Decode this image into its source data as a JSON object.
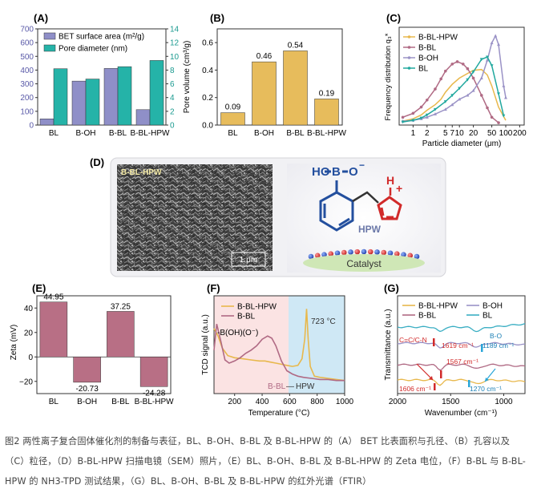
{
  "panels": {
    "A": {
      "label": "(A)",
      "legend": [
        "BET surface area (m²/g)",
        "Pore diameter (nm)"
      ],
      "colors": {
        "bet": "#8f8fc8",
        "pore": "#25b3a8"
      },
      "left_ticks": [
        "0",
        "100",
        "200",
        "300",
        "400",
        "500",
        "600",
        "700"
      ],
      "right_ticks": [
        "0",
        "2",
        "4",
        "6",
        "8",
        "10",
        "12",
        "14"
      ],
      "categories": [
        "BL",
        "B-OH",
        "B-BL",
        "B-BL-HPW"
      ]
    },
    "B": {
      "label": "(B)",
      "ylabel": "Pore volume (cm³/g)",
      "ticks": [
        "0.0",
        "0.2",
        "0.4",
        "0.6"
      ],
      "color": "#e7bc5c"
    },
    "C": {
      "label": "(C)",
      "ylabel": "Frequency distribution q₃*",
      "xlabel": "Particle diameter (μm)",
      "xticks": [
        "1",
        "2",
        "5",
        "7",
        "10",
        "20",
        "50",
        "100",
        "200"
      ],
      "legend": [
        "B-BL-HPW",
        "B-BL",
        "B-OH",
        "BL"
      ]
    },
    "D": {
      "label": "(D)",
      "sem_tag": "B-BL-HPW",
      "scale_bar": "1 μm",
      "scheme_hpw": "HPW",
      "scheme_catalyst": "Catalyst",
      "atoms": {
        "HO": "HO",
        "B": "B",
        "O": "O",
        "minus": "−",
        "H": "H",
        "N": "N",
        "plus": "+"
      }
    },
    "E": {
      "label": "(E)",
      "ylabel": "Zeta (mV)",
      "ticks": [
        "−20",
        "0",
        "20",
        "40"
      ],
      "color": "#b86f85"
    },
    "F": {
      "label": "(F)",
      "ylabel": "TCD signal (a.u.)",
      "xlabel": "Temperature (°C)",
      "xticks": [
        "200",
        "400",
        "600",
        "800",
        "1000"
      ],
      "legend": [
        "B-BL-HPW",
        "B-BL"
      ],
      "annot_boh": "-B(OH)(O⁻)",
      "annot_peak": "723 °C",
      "annot_bbl": "B-BL",
      "annot_dash": "—",
      "annot_hpw": "HPW"
    },
    "G": {
      "label": "(G)",
      "ylabel": "Transmittance (a.u.)",
      "xlabel": "Wavenumber (cm⁻¹)",
      "xticks": [
        "2000",
        "1500",
        "1000"
      ],
      "legend": [
        "B-BL-HPW",
        "B-OH",
        "B-BL",
        "BL"
      ],
      "annot": [
        "C=C/C-N",
        "1619 cm⁻¹",
        "B-O",
        "1189 cm⁻¹",
        "1567 cm⁻¹",
        "1606 cm⁻¹",
        "1270 cm⁻¹"
      ]
    }
  },
  "chart_data": [
    {
      "panel": "A",
      "type": "bar",
      "categories": [
        "BL",
        "B-OH",
        "B-BL",
        "B-BL-HPW"
      ],
      "series": [
        {
          "name": "BET surface area (m²/g)",
          "values": [
            45,
            320,
            412,
            112
          ],
          "axis": "left"
        },
        {
          "name": "Pore diameter (nm)",
          "values": [
            8.2,
            6.7,
            8.5,
            9.4
          ],
          "axis": "right"
        }
      ],
      "ylim": [
        0,
        700
      ],
      "y2lim": [
        0,
        14
      ]
    },
    {
      "panel": "B",
      "type": "bar",
      "categories": [
        "BL",
        "B-OH",
        "B-BL",
        "B-BL-HPW"
      ],
      "values": [
        0.09,
        0.46,
        0.54,
        0.19
      ],
      "data_labels": [
        "0.09",
        "0.46",
        "0.54",
        "0.19"
      ],
      "ylabel": "Pore volume (cm³/g)",
      "ylim": [
        0,
        0.7
      ]
    },
    {
      "panel": "C",
      "type": "line",
      "xscale": "log",
      "xlabel": "Particle diameter (μm)",
      "ylabel": "Frequency distribution q₃*",
      "xlim": [
        0.5,
        250
      ],
      "series": [
        {
          "name": "B-BL-HPW",
          "color": "#e8b84c",
          "x": [
            0.6,
            1,
            1.5,
            2,
            3,
            4,
            5,
            7,
            10,
            15,
            20,
            30,
            40,
            50,
            70,
            100
          ],
          "y": [
            0.5,
            0.8,
            1.3,
            1.9,
            2.6,
            3.3,
            4.2,
            5.2,
            6.0,
            6.6,
            7.0,
            7.1,
            6.4,
            5.0,
            2.3,
            0.6
          ]
        },
        {
          "name": "B-BL",
          "color": "#b06a84",
          "x": [
            0.6,
            1,
            1.5,
            2,
            3,
            4,
            5,
            7,
            9,
            12,
            15,
            20,
            30,
            40,
            50,
            70
          ],
          "y": [
            1.0,
            1.5,
            2.3,
            3.2,
            4.6,
            5.9,
            6.9,
            7.8,
            8.1,
            7.8,
            7.2,
            6.0,
            3.8,
            2.2,
            1.0,
            0.3
          ]
        },
        {
          "name": "B-OH",
          "color": "#9a92c6",
          "x": [
            0.6,
            1,
            1.5,
            2,
            3,
            5,
            7,
            10,
            15,
            20,
            30,
            40,
            50,
            60,
            70,
            90,
            100
          ],
          "y": [
            0.5,
            0.6,
            0.8,
            1.0,
            1.4,
            2.0,
            2.6,
            3.3,
            3.8,
            4.4,
            6.0,
            8.3,
            10.5,
            11.4,
            10.3,
            5.0,
            3.5
          ]
        },
        {
          "name": "BL",
          "color": "#20a89e",
          "x": [
            0.6,
            1,
            1.5,
            2,
            3,
            5,
            7,
            10,
            15,
            20,
            30,
            40,
            50,
            70,
            90
          ],
          "y": [
            0.4,
            0.6,
            0.9,
            1.3,
            2.0,
            3.0,
            3.8,
            4.7,
            5.8,
            6.8,
            8.4,
            8.7,
            7.6,
            4.0,
            1.2
          ]
        }
      ]
    },
    {
      "panel": "E",
      "type": "bar",
      "categories": [
        "BL",
        "B-OH",
        "B-BL",
        "B-BL-HPW"
      ],
      "values": [
        44.95,
        -20.73,
        37.25,
        -24.28
      ],
      "data_labels": [
        "44.95",
        "-20.73",
        "37.25",
        "-24.28"
      ],
      "ylabel": "Zeta (mV)",
      "ylim": [
        -30,
        50
      ]
    },
    {
      "panel": "F",
      "type": "line",
      "xlabel": "Temperature (°C)",
      "ylabel": "TCD signal (a.u.)",
      "xlim": [
        50,
        1000
      ],
      "series": [
        {
          "name": "B-BL-HPW",
          "color": "#e8b84c",
          "x": [
            50,
            80,
            110,
            150,
            200,
            260,
            320,
            380,
            420,
            460,
            500,
            540,
            580,
            620,
            660,
            690,
            710,
            723,
            735,
            750,
            780,
            820,
            880,
            940,
            1000
          ],
          "y": [
            8,
            7.3,
            6.2,
            5.5,
            5.3,
            5.2,
            5.1,
            5.0,
            5.0,
            4.9,
            4.8,
            4.7,
            4.6,
            4.5,
            4.6,
            5.2,
            7.0,
            9.8,
            7.0,
            4.5,
            3.6,
            3.5,
            3.4,
            3.3,
            3.2
          ]
        },
        {
          "name": "B-BL",
          "color": "#b06a84",
          "x": [
            50,
            70,
            100,
            130,
            160,
            200,
            240,
            280,
            320,
            360,
            400,
            440,
            470,
            500,
            540,
            580,
            620,
            660,
            700,
            760,
            820,
            880,
            940,
            1000
          ],
          "y": [
            6.0,
            8.4,
            6.8,
            5.1,
            4.8,
            5.0,
            5.3,
            5.7,
            6.0,
            6.4,
            7.0,
            7.3,
            7.1,
            6.4,
            5.0,
            4.1,
            3.8,
            3.6,
            3.5,
            3.4,
            3.3,
            3.3,
            3.2,
            3.2
          ]
        }
      ]
    },
    {
      "panel": "G",
      "type": "line",
      "xlabel": "Wavenumber (cm⁻¹)",
      "ylabel": "Transmittance (a.u.)",
      "xlim": [
        2000,
        800
      ],
      "series": [
        {
          "name": "BL",
          "color": "#3aaec3"
        },
        {
          "name": "B-OH",
          "color": "#9a92c6"
        },
        {
          "name": "B-BL",
          "color": "#b06a84"
        },
        {
          "name": "B-BL-HPW",
          "color": "#e8b84c"
        }
      ]
    }
  ]
}
